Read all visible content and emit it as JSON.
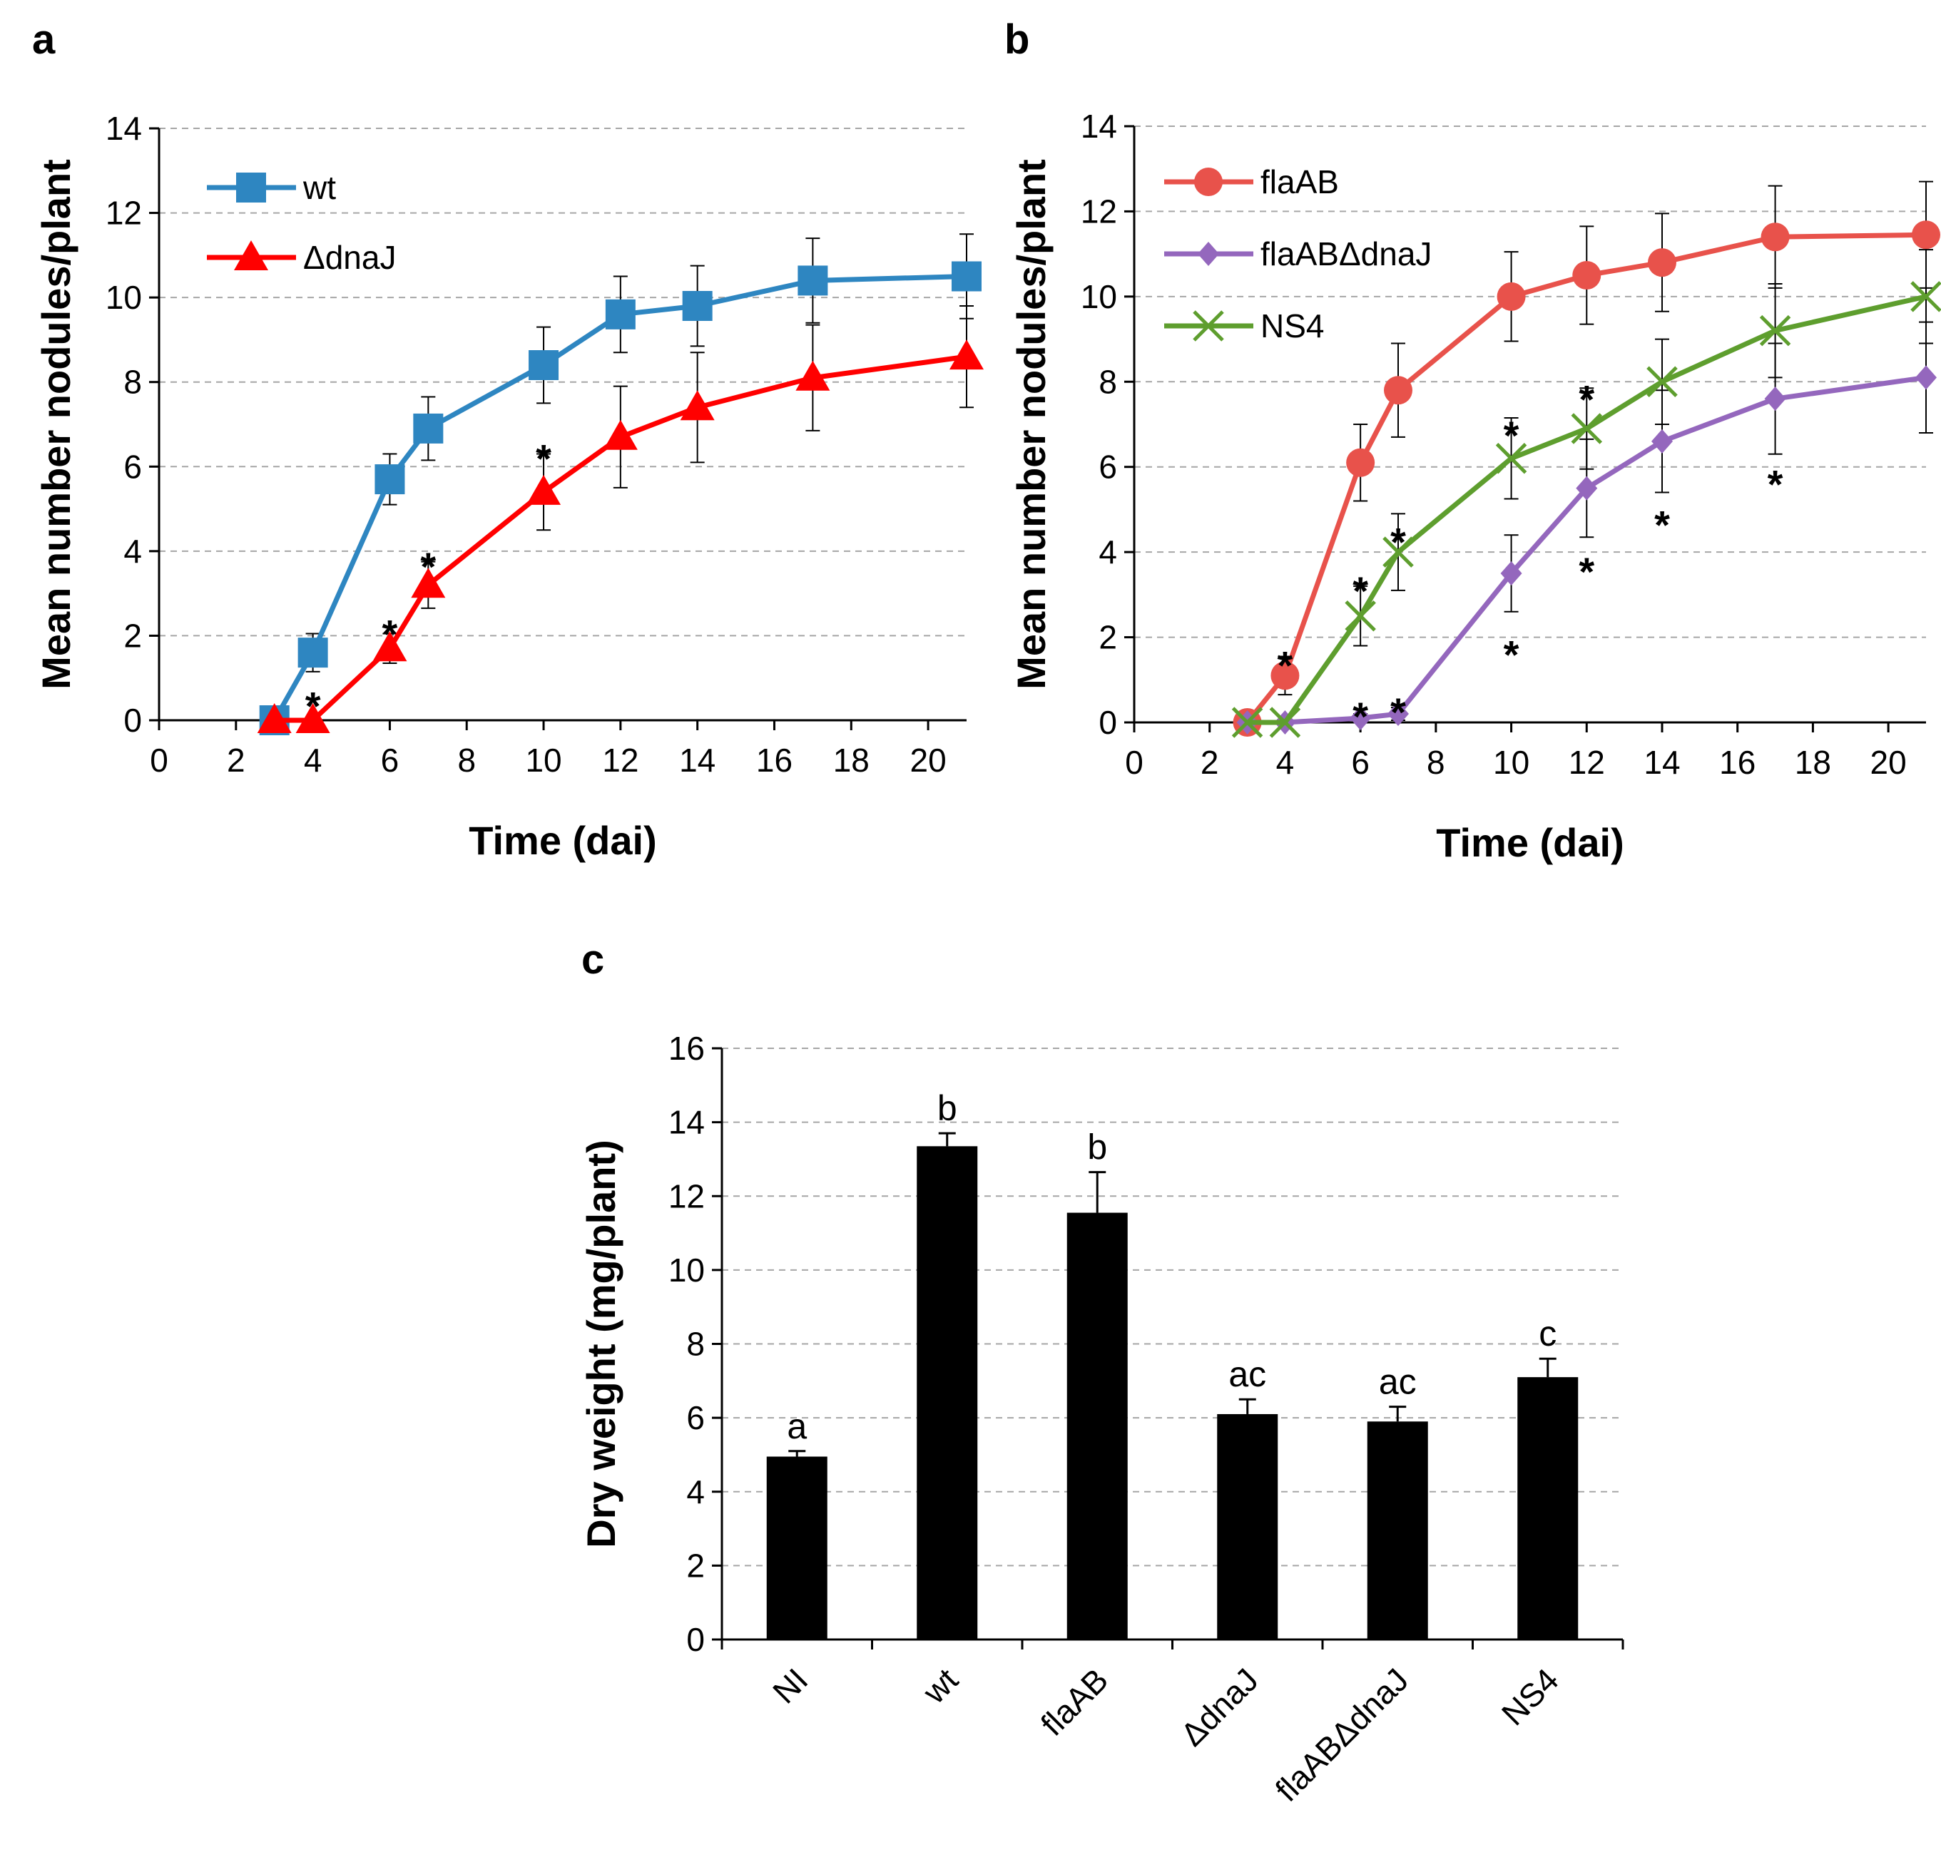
{
  "chart_data": [
    {
      "panel": "a",
      "type": "line",
      "xlabel": "Time (dai)",
      "ylabel": "Mean number nodules/plant",
      "xlim": [
        0,
        21
      ],
      "ylim": [
        0,
        14
      ],
      "xticks": [
        0,
        2,
        4,
        6,
        8,
        10,
        12,
        14,
        16,
        18,
        20
      ],
      "yticks": [
        0,
        2,
        4,
        6,
        8,
        10,
        12,
        14
      ],
      "grid": true,
      "legend_position": "top-left",
      "series": [
        {
          "name": "wt",
          "color": "#2e86c1",
          "marker": "square",
          "x": [
            3,
            4,
            6,
            7,
            10,
            12,
            14,
            17,
            21
          ],
          "y": [
            0,
            1.6,
            5.7,
            6.9,
            8.4,
            9.6,
            9.8,
            10.4,
            10.5
          ],
          "err": [
            0,
            0.45,
            0.6,
            0.75,
            0.9,
            0.9,
            0.95,
            1.0,
            1.0
          ]
        },
        {
          "name": "ΔdnaJ",
          "color": "#ff0000",
          "marker": "triangle",
          "x": [
            3,
            4,
            6,
            7,
            10,
            12,
            14,
            17,
            21
          ],
          "y": [
            0,
            0,
            1.7,
            3.2,
            5.4,
            6.7,
            7.4,
            8.1,
            8.6
          ],
          "err": [
            0,
            0,
            0.35,
            0.55,
            0.9,
            1.2,
            1.3,
            1.25,
            1.2
          ]
        }
      ],
      "annotations": [
        {
          "text": "*",
          "x": 4,
          "y": 0.65
        },
        {
          "text": "*",
          "x": 6,
          "y": 2.35
        },
        {
          "text": "*",
          "x": 7,
          "y": 3.95
        },
        {
          "text": "*",
          "x": 10,
          "y": 6.5
        }
      ]
    },
    {
      "panel": "b",
      "type": "line",
      "xlabel": "Time (dai)",
      "ylabel": "Mean number nodules/plant",
      "xlim": [
        0,
        21
      ],
      "ylim": [
        0,
        14
      ],
      "xticks": [
        0,
        2,
        4,
        6,
        8,
        10,
        12,
        14,
        16,
        18,
        20
      ],
      "yticks": [
        0,
        2,
        4,
        6,
        8,
        10,
        12,
        14
      ],
      "grid": true,
      "legend_position": "top-left",
      "series": [
        {
          "name": "flaAB",
          "color": "#e8524b",
          "marker": "circle",
          "x": [
            3,
            4,
            6,
            7,
            10,
            12,
            14,
            17,
            21
          ],
          "y": [
            0,
            1.1,
            6.1,
            7.8,
            10.0,
            10.5,
            10.8,
            11.4,
            11.45
          ],
          "err": [
            0,
            0.45,
            0.9,
            1.1,
            1.05,
            1.15,
            1.15,
            1.2,
            1.25
          ]
        },
        {
          "name": "flaABΔdnaJ",
          "color": "#9467bd",
          "marker": "diamond",
          "x": [
            3,
            4,
            6,
            7,
            10,
            12,
            14,
            17,
            21
          ],
          "y": [
            0,
            0,
            0.1,
            0.2,
            3.5,
            5.5,
            6.6,
            7.6,
            8.1
          ],
          "err": [
            0,
            0,
            0.1,
            0.15,
            0.9,
            1.15,
            1.2,
            1.3,
            1.3
          ]
        },
        {
          "name": "NS4",
          "color": "#5e9e2e",
          "marker": "x",
          "x": [
            3,
            4,
            6,
            7,
            10,
            12,
            14,
            17,
            21
          ],
          "y": [
            0,
            0,
            2.5,
            4.0,
            6.2,
            6.9,
            8.0,
            9.2,
            10.0
          ],
          "err": [
            0,
            0,
            0.7,
            0.9,
            0.95,
            0.95,
            1.0,
            1.1,
            1.1
          ]
        }
      ],
      "annotations": [
        {
          "text": "*",
          "x": 4,
          "y": 1.65
        },
        {
          "text": "*",
          "x": 6,
          "y": 3.4
        },
        {
          "text": "*",
          "x": 7,
          "y": 4.55
        },
        {
          "text": "*",
          "x": 10,
          "y": 7.05
        },
        {
          "text": "*",
          "x": 12,
          "y": 7.9
        },
        {
          "text": "*",
          "x": 6,
          "y": 0.45
        },
        {
          "text": "*",
          "x": 7,
          "y": 0.55
        },
        {
          "text": "*",
          "x": 10,
          "y": 1.9
        },
        {
          "text": "*",
          "x": 12,
          "y": 3.85
        },
        {
          "text": "*",
          "x": 14,
          "y": 4.95
        },
        {
          "text": "*",
          "x": 17,
          "y": 5.9
        }
      ]
    },
    {
      "panel": "c",
      "type": "bar",
      "xlabel": "",
      "ylabel": "Dry weight (mg/plant)",
      "ylim": [
        0,
        16
      ],
      "yticks": [
        0,
        2,
        4,
        6,
        8,
        10,
        12,
        14,
        16
      ],
      "grid": true,
      "bar_color": "#000000",
      "categories": [
        "NI",
        "wt",
        "flaAB",
        "ΔdnaJ",
        "flaABΔdnaJ",
        "NS4"
      ],
      "values": [
        4.95,
        13.35,
        11.55,
        6.1,
        5.9,
        7.1
      ],
      "err": [
        0.15,
        0.35,
        1.1,
        0.4,
        0.4,
        0.5
      ],
      "letters": [
        "a",
        "b",
        "b",
        "ac",
        "ac",
        "c"
      ]
    }
  ]
}
